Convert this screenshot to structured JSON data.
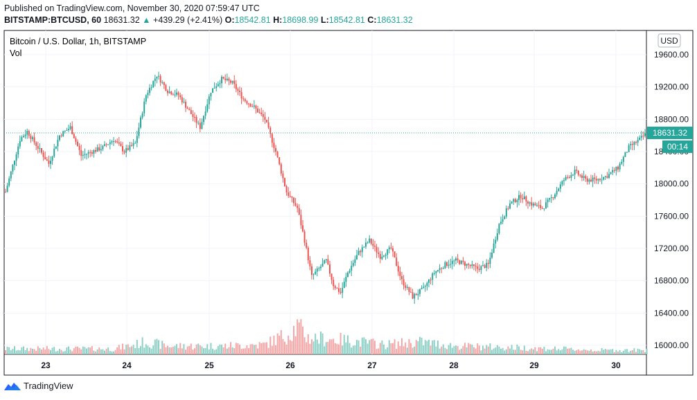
{
  "header": {
    "published": "Published on TradingView.com, November 30, 2020 07:59:47 UTC",
    "symbol_line": "BITSTAMP:BTCUSD, 60",
    "last": "18631.32",
    "change": "+439.29 (+2.41%)",
    "o_label": "O:",
    "o_value": "18542.81",
    "h_label": "H:",
    "h_value": "18698.99",
    "l_label": "L:",
    "l_value": "18542.81",
    "c_label": "C:",
    "c_value": "18631.32"
  },
  "chart_title": "Bitcoin / U.S. Dollar, 1h, BITSTAMP",
  "vol_label": "Vol",
  "currency_badge": "USD",
  "price_badge": "18631.32",
  "countdown_badge": "00:14",
  "footer": {
    "brand": "TradingView"
  },
  "colors": {
    "up": "#26a69a",
    "down": "#ef5350",
    "up_vol": "#8fd0c6",
    "down_vol": "#f5a6a6",
    "grid": "#f0f3fa"
  },
  "chart_data": {
    "type": "candlestick",
    "title": "Bitcoin / U.S. Dollar, 1h, BITSTAMP",
    "ylim": [
      15900,
      19750
    ],
    "y_ticks": [
      16000,
      16400,
      16800,
      17200,
      17600,
      18000,
      18400,
      18800,
      19200,
      19600
    ],
    "x_ticks": [
      "23",
      "24",
      "25",
      "26",
      "27",
      "28",
      "29",
      "30"
    ],
    "last_price": 18631.32,
    "keypoints": [
      [
        0,
        17900
      ],
      [
        8,
        18550
      ],
      [
        12,
        18650
      ],
      [
        18,
        18450
      ],
      [
        24,
        18250
      ],
      [
        30,
        18600
      ],
      [
        36,
        18700
      ],
      [
        42,
        18350
      ],
      [
        48,
        18400
      ],
      [
        54,
        18450
      ],
      [
        60,
        18550
      ],
      [
        66,
        18400
      ],
      [
        72,
        18500
      ],
      [
        78,
        19100
      ],
      [
        84,
        19350
      ],
      [
        90,
        19150
      ],
      [
        96,
        19100
      ],
      [
        102,
        18900
      ],
      [
        108,
        18700
      ],
      [
        114,
        19150
      ],
      [
        120,
        19300
      ],
      [
        126,
        19250
      ],
      [
        132,
        19050
      ],
      [
        138,
        18950
      ],
      [
        144,
        18800
      ],
      [
        150,
        18400
      ],
      [
        156,
        17900
      ],
      [
        162,
        17700
      ],
      [
        166,
        17300
      ],
      [
        170,
        16850
      ],
      [
        174,
        16950
      ],
      [
        178,
        17050
      ],
      [
        182,
        16750
      ],
      [
        186,
        16650
      ],
      [
        190,
        16900
      ],
      [
        196,
        17150
      ],
      [
        202,
        17300
      ],
      [
        208,
        17100
      ],
      [
        214,
        17200
      ],
      [
        220,
        16800
      ],
      [
        226,
        16600
      ],
      [
        232,
        16700
      ],
      [
        238,
        16900
      ],
      [
        244,
        17000
      ],
      [
        250,
        17050
      ],
      [
        256,
        17000
      ],
      [
        262,
        16950
      ],
      [
        268,
        17000
      ],
      [
        274,
        17500
      ],
      [
        280,
        17750
      ],
      [
        286,
        17850
      ],
      [
        292,
        17750
      ],
      [
        298,
        17700
      ],
      [
        304,
        17850
      ],
      [
        310,
        18050
      ],
      [
        316,
        18150
      ],
      [
        322,
        18050
      ],
      [
        328,
        18050
      ],
      [
        334,
        18100
      ],
      [
        340,
        18200
      ],
      [
        346,
        18450
      ],
      [
        352,
        18550
      ],
      [
        356,
        18631.32
      ]
    ],
    "volume_profile": [
      [
        0,
        0.2
      ],
      [
        60,
        0.2
      ],
      [
        72,
        0.35
      ],
      [
        78,
        0.45
      ],
      [
        90,
        0.3
      ],
      [
        120,
        0.3
      ],
      [
        144,
        0.35
      ],
      [
        150,
        0.55
      ],
      [
        156,
        0.7
      ],
      [
        162,
        1.0
      ],
      [
        168,
        0.6
      ],
      [
        180,
        0.55
      ],
      [
        190,
        0.5
      ],
      [
        210,
        0.35
      ],
      [
        230,
        0.45
      ],
      [
        250,
        0.3
      ],
      [
        280,
        0.25
      ],
      [
        330,
        0.15
      ],
      [
        356,
        0.15
      ]
    ]
  }
}
